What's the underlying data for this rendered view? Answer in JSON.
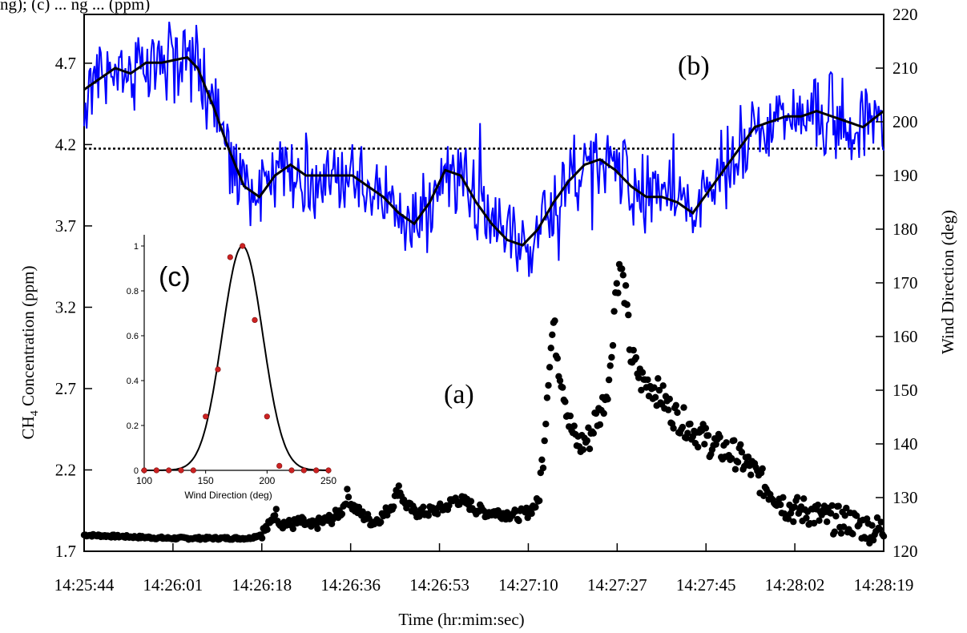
{
  "caption_fragment": "ng); (c) ... ng ... (ppm)",
  "chart_data": {
    "type": "scatter",
    "xlabel": "Time (hr:mim:sec)",
    "x_ticks": [
      "14:25:44",
      "14:26:01",
      "14:26:18",
      "14:26:36",
      "14:26:53",
      "14:27:10",
      "14:27:27",
      "14:27:45",
      "14:28:02",
      "14:28:19"
    ],
    "ylabel_left_main": "CH",
    "ylabel_left_sub": "4",
    "ylabel_left_rest": " Concentration (ppm)",
    "ylim_left": [
      1.7,
      5.0
    ],
    "yticks_left": [
      "1.7",
      "2.2",
      "2.7",
      "3.2",
      "3.7",
      "4.2",
      "4.7"
    ],
    "ylabel_right": "Wind Direction (deg)",
    "ylim_right": [
      120,
      220
    ],
    "yticks_right": [
      "120",
      "130",
      "140",
      "150",
      "160",
      "170",
      "180",
      "190",
      "200",
      "210",
      "220"
    ],
    "label_a": "(a)",
    "label_b": "(b)",
    "label_c": "(c)",
    "colors": {
      "ch4": "#000000",
      "wind_raw": "#0000ff",
      "wind_smooth": "#000000",
      "inset_points": "#cc2222"
    },
    "threshold_right_deg": 195,
    "ch4_keypoints_time_s": [
      [
        0,
        1.8
      ],
      [
        8,
        1.79
      ],
      [
        16,
        1.78
      ],
      [
        24,
        1.78
      ],
      [
        32,
        1.78
      ],
      [
        34,
        1.8
      ],
      [
        36,
        1.86
      ],
      [
        37,
        1.95
      ],
      [
        38,
        1.88
      ],
      [
        40,
        1.86
      ],
      [
        42,
        1.88
      ],
      [
        44,
        1.85
      ],
      [
        46,
        1.88
      ],
      [
        48,
        1.9
      ],
      [
        50,
        1.95
      ],
      [
        51,
        2.05
      ],
      [
        52,
        1.98
      ],
      [
        54,
        1.92
      ],
      [
        56,
        1.88
      ],
      [
        58,
        1.92
      ],
      [
        60,
        2.0
      ],
      [
        61,
        2.1
      ],
      [
        62,
        2.0
      ],
      [
        64,
        1.94
      ],
      [
        66,
        1.94
      ],
      [
        68,
        1.95
      ],
      [
        70,
        1.97
      ],
      [
        72,
        2.02
      ],
      [
        74,
        2.0
      ],
      [
        76,
        1.96
      ],
      [
        78,
        1.94
      ],
      [
        80,
        1.94
      ],
      [
        82,
        1.93
      ],
      [
        84,
        1.92
      ],
      [
        86,
        1.94
      ],
      [
        88,
        2.0
      ],
      [
        89,
        2.3
      ],
      [
        90,
        2.8
      ],
      [
        91,
        3.1
      ],
      [
        92,
        2.85
      ],
      [
        93,
        2.7
      ],
      [
        94,
        2.5
      ],
      [
        95,
        2.4
      ],
      [
        96,
        2.35
      ],
      [
        98,
        2.4
      ],
      [
        99,
        2.5
      ],
      [
        100,
        2.55
      ],
      [
        101,
        2.65
      ],
      [
        102,
        2.8
      ],
      [
        103,
        3.3
      ],
      [
        104,
        3.45
      ],
      [
        105,
        3.25
      ],
      [
        106,
        2.9
      ],
      [
        108,
        2.75
      ],
      [
        110,
        2.72
      ],
      [
        112,
        2.65
      ],
      [
        114,
        2.55
      ],
      [
        116,
        2.5
      ],
      [
        118,
        2.45
      ],
      [
        120,
        2.4
      ],
      [
        122,
        2.35
      ],
      [
        124,
        2.32
      ],
      [
        126,
        2.3
      ],
      [
        128,
        2.25
      ],
      [
        130,
        2.18
      ],
      [
        132,
        2.1
      ],
      [
        134,
        2.05
      ],
      [
        136,
        1.98
      ],
      [
        138,
        1.95
      ],
      [
        140,
        1.95
      ],
      [
        142,
        1.92
      ],
      [
        144,
        1.9
      ],
      [
        146,
        1.89
      ],
      [
        148,
        1.89
      ],
      [
        150,
        1.86
      ],
      [
        152,
        1.84
      ],
      [
        155,
        1.83
      ]
    ],
    "wind_smooth_keypoints_time_s": [
      [
        0,
        206
      ],
      [
        3,
        208
      ],
      [
        6,
        210
      ],
      [
        9,
        209
      ],
      [
        12,
        211
      ],
      [
        15,
        211
      ],
      [
        20,
        212
      ],
      [
        22,
        210
      ],
      [
        25,
        203
      ],
      [
        28,
        195
      ],
      [
        31,
        188
      ],
      [
        34,
        186
      ],
      [
        37,
        190
      ],
      [
        40,
        192
      ],
      [
        43,
        190
      ],
      [
        46,
        190
      ],
      [
        49,
        190
      ],
      [
        52,
        190
      ],
      [
        55,
        188
      ],
      [
        58,
        186
      ],
      [
        61,
        183
      ],
      [
        64,
        181
      ],
      [
        67,
        185
      ],
      [
        70,
        191
      ],
      [
        73,
        190
      ],
      [
        76,
        185
      ],
      [
        79,
        181
      ],
      [
        82,
        178
      ],
      [
        85,
        177
      ],
      [
        88,
        180
      ],
      [
        91,
        185
      ],
      [
        94,
        189
      ],
      [
        97,
        192
      ],
      [
        100,
        193
      ],
      [
        103,
        191
      ],
      [
        106,
        188
      ],
      [
        109,
        186
      ],
      [
        112,
        186
      ],
      [
        115,
        185
      ],
      [
        118,
        183
      ],
      [
        121,
        187
      ],
      [
        124,
        191
      ],
      [
        127,
        195
      ],
      [
        130,
        199
      ],
      [
        133,
        200
      ],
      [
        136,
        201
      ],
      [
        139,
        201
      ],
      [
        142,
        202
      ],
      [
        145,
        201
      ],
      [
        148,
        200
      ],
      [
        151,
        199
      ],
      [
        155,
        202
      ]
    ],
    "wind_raw_noise_amplitude_deg": 6,
    "inset": {
      "type": "line",
      "xlabel": "Wind Direction (deg)",
      "xlim": [
        100,
        250
      ],
      "ylim": [
        0,
        1.05
      ],
      "x_ticks": [
        "100",
        "150",
        "200",
        "250"
      ],
      "y_ticks": [
        "0",
        "0.2",
        "0.4",
        "0.6",
        "0.8",
        "1"
      ],
      "gauss_center": 180,
      "gauss_sigma": 16.5,
      "points": [
        [
          100,
          0
        ],
        [
          110,
          0
        ],
        [
          120,
          0
        ],
        [
          130,
          0
        ],
        [
          140,
          0
        ],
        [
          150,
          0.24
        ],
        [
          160,
          0.45
        ],
        [
          170,
          0.95
        ],
        [
          180,
          1.0
        ],
        [
          190,
          0.67
        ],
        [
          200,
          0.24
        ],
        [
          210,
          0.02
        ],
        [
          220,
          0
        ],
        [
          230,
          0
        ],
        [
          240,
          0
        ],
        [
          250,
          0
        ]
      ]
    }
  }
}
